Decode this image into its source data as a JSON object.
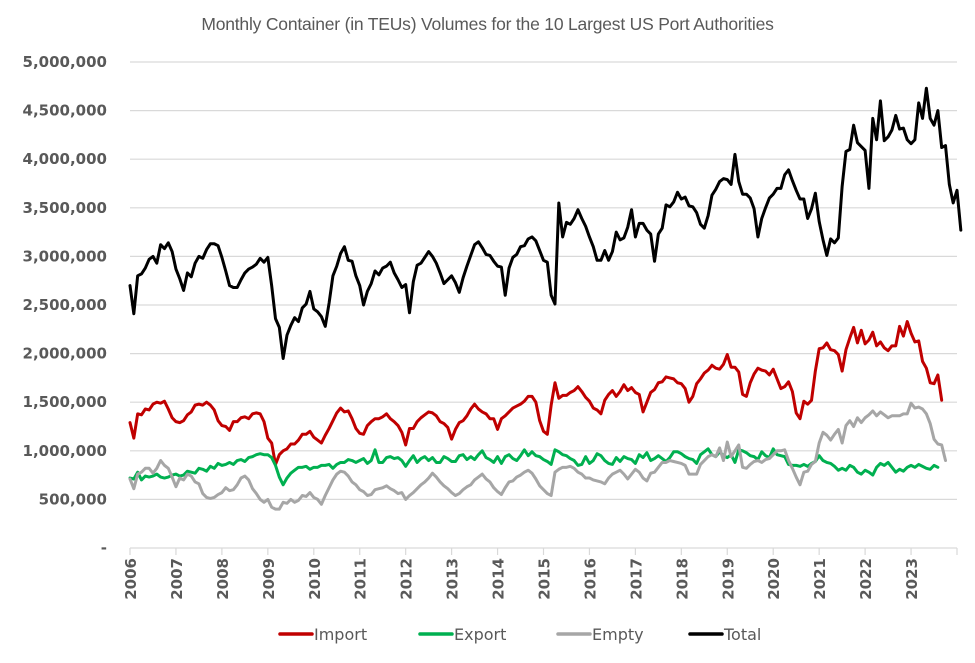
{
  "chart_data": {
    "type": "line",
    "title": "Monthly Container (in TEUs) Volumes for the 10 Largest US Port Authorities",
    "xlabel": "",
    "ylabel": "",
    "ylim": [
      0,
      5000000
    ],
    "yticks": [
      0,
      500000,
      1000000,
      1500000,
      2000000,
      2500000,
      3000000,
      3500000,
      4000000,
      4500000,
      5000000
    ],
    "ytick_labels": [
      "-",
      "500,000",
      "1,000,000",
      "1,500,000",
      "2,000,000",
      "2,500,000",
      "3,000,000",
      "3,500,000",
      "4,000,000",
      "4,500,000",
      "5,000,000"
    ],
    "xtick_labels": [
      "2006",
      "2007",
      "2008",
      "2009",
      "2010",
      "2011",
      "2012",
      "2013",
      "2014",
      "2015",
      "2016",
      "2017",
      "2018",
      "2019",
      "2020",
      "2021",
      "2022",
      "2023"
    ],
    "x_start": "2006-01",
    "x_end_axis": "2024-01",
    "frequency": "monthly",
    "grid": true,
    "legend_position": "bottom",
    "series": [
      {
        "name": "Import",
        "color": "#c00000",
        "values": [
          1290000,
          1130000,
          1380000,
          1370000,
          1430000,
          1420000,
          1480000,
          1500000,
          1490000,
          1510000,
          1430000,
          1340000,
          1300000,
          1290000,
          1310000,
          1370000,
          1400000,
          1470000,
          1480000,
          1470000,
          1500000,
          1470000,
          1420000,
          1310000,
          1260000,
          1250000,
          1210000,
          1300000,
          1300000,
          1340000,
          1350000,
          1330000,
          1380000,
          1390000,
          1380000,
          1300000,
          1130000,
          1080000,
          860000,
          960000,
          1000000,
          1020000,
          1070000,
          1070000,
          1110000,
          1170000,
          1170000,
          1200000,
          1140000,
          1110000,
          1080000,
          1160000,
          1230000,
          1310000,
          1390000,
          1440000,
          1400000,
          1410000,
          1330000,
          1230000,
          1180000,
          1170000,
          1260000,
          1300000,
          1330000,
          1330000,
          1350000,
          1380000,
          1330000,
          1300000,
          1260000,
          1190000,
          1060000,
          1230000,
          1230000,
          1300000,
          1340000,
          1370000,
          1400000,
          1390000,
          1360000,
          1300000,
          1280000,
          1240000,
          1120000,
          1220000,
          1290000,
          1310000,
          1360000,
          1430000,
          1480000,
          1430000,
          1400000,
          1380000,
          1330000,
          1330000,
          1220000,
          1330000,
          1360000,
          1400000,
          1440000,
          1460000,
          1480000,
          1510000,
          1560000,
          1560000,
          1500000,
          1310000,
          1200000,
          1170000,
          1470000,
          1700000,
          1540000,
          1570000,
          1570000,
          1600000,
          1620000,
          1660000,
          1610000,
          1550000,
          1510000,
          1440000,
          1420000,
          1380000,
          1520000,
          1580000,
          1620000,
          1560000,
          1610000,
          1680000,
          1620000,
          1650000,
          1600000,
          1580000,
          1400000,
          1500000,
          1600000,
          1630000,
          1700000,
          1710000,
          1760000,
          1750000,
          1740000,
          1700000,
          1690000,
          1640000,
          1500000,
          1560000,
          1690000,
          1740000,
          1800000,
          1830000,
          1880000,
          1850000,
          1840000,
          1890000,
          1990000,
          1860000,
          1860000,
          1810000,
          1580000,
          1560000,
          1700000,
          1790000,
          1850000,
          1830000,
          1820000,
          1780000,
          1840000,
          1740000,
          1640000,
          1660000,
          1710000,
          1610000,
          1390000,
          1330000,
          1510000,
          1480000,
          1520000,
          1820000,
          2050000,
          2060000,
          2110000,
          2040000,
          2030000,
          1990000,
          1820000,
          2040000,
          2160000,
          2270000,
          2110000,
          2240000,
          2100000,
          2140000,
          2220000,
          2080000,
          2120000,
          2060000,
          2030000,
          2080000,
          2080000,
          2280000,
          2180000,
          2330000,
          2210000,
          2120000,
          2130000,
          1920000,
          1850000,
          1700000,
          1690000,
          1780000,
          1520000
        ]
      },
      {
        "name": "Export",
        "color": "#00b050",
        "values": [
          720000,
          710000,
          780000,
          700000,
          740000,
          730000,
          740000,
          760000,
          730000,
          720000,
          730000,
          750000,
          760000,
          740000,
          750000,
          790000,
          780000,
          770000,
          820000,
          810000,
          790000,
          840000,
          820000,
          870000,
          850000,
          860000,
          880000,
          860000,
          900000,
          910000,
          890000,
          930000,
          940000,
          960000,
          970000,
          960000,
          960000,
          930000,
          850000,
          730000,
          650000,
          720000,
          770000,
          800000,
          830000,
          830000,
          840000,
          810000,
          830000,
          830000,
          850000,
          850000,
          860000,
          820000,
          860000,
          880000,
          880000,
          910000,
          900000,
          880000,
          900000,
          920000,
          870000,
          900000,
          1010000,
          880000,
          880000,
          930000,
          940000,
          920000,
          930000,
          900000,
          840000,
          900000,
          950000,
          880000,
          920000,
          940000,
          900000,
          930000,
          880000,
          880000,
          940000,
          920000,
          890000,
          890000,
          950000,
          960000,
          910000,
          940000,
          910000,
          960000,
          1000000,
          930000,
          910000,
          880000,
          940000,
          870000,
          940000,
          960000,
          920000,
          900000,
          950000,
          1010000,
          950000,
          990000,
          950000,
          940000,
          910000,
          890000,
          860000,
          1010000,
          990000,
          960000,
          950000,
          920000,
          900000,
          850000,
          860000,
          940000,
          870000,
          900000,
          970000,
          950000,
          900000,
          870000,
          860000,
          930000,
          890000,
          940000,
          920000,
          910000,
          870000,
          960000,
          930000,
          980000,
          900000,
          920000,
          950000,
          920000,
          890000,
          930000,
          990000,
          990000,
          970000,
          940000,
          920000,
          910000,
          870000,
          960000,
          990000,
          1020000,
          960000,
          940000,
          990000,
          950000,
          930000,
          960000,
          880000,
          1010000,
          1000000,
          980000,
          950000,
          940000,
          910000,
          990000,
          950000,
          930000,
          1020000,
          960000,
          950000,
          940000,
          860000,
          850000,
          850000,
          840000,
          860000,
          840000,
          870000,
          890000,
          950000,
          900000,
          880000,
          870000,
          840000,
          800000,
          820000,
          800000,
          850000,
          830000,
          780000,
          760000,
          800000,
          780000,
          750000,
          830000,
          870000,
          850000,
          880000,
          830000,
          780000,
          810000,
          790000,
          830000,
          850000,
          830000,
          860000,
          840000,
          820000,
          810000,
          850000,
          830000
        ]
      },
      {
        "name": "Empty",
        "color": "#a6a6a6",
        "values": [
          710000,
          610000,
          760000,
          780000,
          820000,
          820000,
          770000,
          820000,
          900000,
          850000,
          820000,
          730000,
          630000,
          720000,
          700000,
          760000,
          740000,
          680000,
          660000,
          560000,
          520000,
          510000,
          520000,
          550000,
          570000,
          620000,
          590000,
          600000,
          650000,
          720000,
          740000,
          700000,
          610000,
          560000,
          500000,
          470000,
          500000,
          420000,
          400000,
          400000,
          470000,
          460000,
          500000,
          470000,
          490000,
          540000,
          530000,
          570000,
          520000,
          500000,
          450000,
          540000,
          620000,
          700000,
          760000,
          790000,
          780000,
          740000,
          680000,
          650000,
          600000,
          580000,
          540000,
          550000,
          600000,
          610000,
          620000,
          640000,
          610000,
          590000,
          560000,
          570000,
          500000,
          540000,
          570000,
          610000,
          650000,
          680000,
          720000,
          770000,
          730000,
          680000,
          640000,
          610000,
          570000,
          540000,
          560000,
          600000,
          630000,
          650000,
          700000,
          730000,
          760000,
          710000,
          680000,
          620000,
          580000,
          550000,
          620000,
          680000,
          690000,
          730000,
          750000,
          780000,
          800000,
          770000,
          710000,
          640000,
          600000,
          560000,
          540000,
          780000,
          810000,
          830000,
          830000,
          840000,
          820000,
          780000,
          760000,
          720000,
          720000,
          700000,
          690000,
          680000,
          660000,
          720000,
          760000,
          780000,
          800000,
          760000,
          710000,
          760000,
          810000,
          780000,
          720000,
          690000,
          770000,
          780000,
          830000,
          880000,
          880000,
          900000,
          890000,
          880000,
          870000,
          850000,
          760000,
          760000,
          760000,
          860000,
          900000,
          940000,
          960000,
          940000,
          1030000,
          900000,
          1090000,
          940000,
          1000000,
          1060000,
          830000,
          820000,
          860000,
          890000,
          900000,
          880000,
          910000,
          920000,
          960000,
          1000000,
          1000000,
          1010000,
          900000,
          820000,
          730000,
          650000,
          780000,
          790000,
          860000,
          890000,
          1080000,
          1190000,
          1160000,
          1110000,
          1170000,
          1220000,
          1080000,
          1260000,
          1310000,
          1250000,
          1340000,
          1290000,
          1340000,
          1370000,
          1410000,
          1360000,
          1400000,
          1370000,
          1340000,
          1360000,
          1360000,
          1360000,
          1380000,
          1380000,
          1490000,
          1440000,
          1450000,
          1430000,
          1380000,
          1280000,
          1120000,
          1070000,
          1060000,
          900000
        ]
      },
      {
        "name": "Total",
        "color": "#000000",
        "values": [
          2700000,
          2410000,
          2800000,
          2820000,
          2880000,
          2970000,
          3000000,
          2930000,
          3120000,
          3080000,
          3140000,
          3050000,
          2870000,
          2770000,
          2650000,
          2830000,
          2790000,
          2930000,
          3000000,
          2980000,
          3070000,
          3130000,
          3130000,
          3110000,
          2990000,
          2850000,
          2700000,
          2680000,
          2680000,
          2760000,
          2830000,
          2870000,
          2890000,
          2920000,
          2980000,
          2940000,
          2990000,
          2700000,
          2360000,
          2270000,
          1950000,
          2190000,
          2290000,
          2370000,
          2330000,
          2470000,
          2510000,
          2640000,
          2460000,
          2430000,
          2380000,
          2280000,
          2520000,
          2800000,
          2900000,
          3030000,
          3100000,
          2960000,
          2950000,
          2800000,
          2700000,
          2500000,
          2640000,
          2720000,
          2850000,
          2810000,
          2880000,
          2900000,
          2940000,
          2830000,
          2760000,
          2680000,
          2710000,
          2420000,
          2740000,
          2910000,
          2930000,
          2990000,
          3050000,
          3000000,
          2930000,
          2830000,
          2720000,
          2760000,
          2800000,
          2730000,
          2630000,
          2780000,
          2900000,
          3010000,
          3120000,
          3150000,
          3090000,
          3020000,
          3010000,
          2950000,
          2900000,
          2890000,
          2600000,
          2880000,
          2990000,
          3020000,
          3100000,
          3110000,
          3180000,
          3200000,
          3160000,
          3060000,
          2960000,
          2940000,
          2600000,
          2510000,
          3550000,
          3200000,
          3350000,
          3330000,
          3390000,
          3480000,
          3390000,
          3310000,
          3200000,
          3100000,
          2960000,
          2960000,
          3060000,
          2960000,
          3050000,
          3250000,
          3170000,
          3190000,
          3300000,
          3480000,
          3200000,
          3340000,
          3340000,
          3270000,
          3230000,
          2950000,
          3230000,
          3290000,
          3530000,
          3510000,
          3560000,
          3660000,
          3590000,
          3610000,
          3520000,
          3510000,
          3450000,
          3330000,
          3290000,
          3420000,
          3630000,
          3690000,
          3770000,
          3800000,
          3790000,
          3740000,
          4050000,
          3770000,
          3640000,
          3640000,
          3600000,
          3490000,
          3200000,
          3390000,
          3500000,
          3600000,
          3640000,
          3700000,
          3700000,
          3840000,
          3890000,
          3780000,
          3680000,
          3590000,
          3590000,
          3390000,
          3490000,
          3650000,
          3360000,
          3170000,
          3010000,
          3180000,
          3140000,
          3190000,
          3720000,
          4080000,
          4100000,
          4350000,
          4170000,
          4130000,
          4090000,
          3700000,
          4420000,
          4200000,
          4600000,
          4190000,
          4230000,
          4300000,
          4450000,
          4310000,
          4320000,
          4200000,
          4160000,
          4200000,
          4580000,
          4420000,
          4730000,
          4420000,
          4350000,
          4500000,
          4120000,
          4140000,
          3740000,
          3550000,
          3680000,
          3270000
        ]
      }
    ]
  }
}
